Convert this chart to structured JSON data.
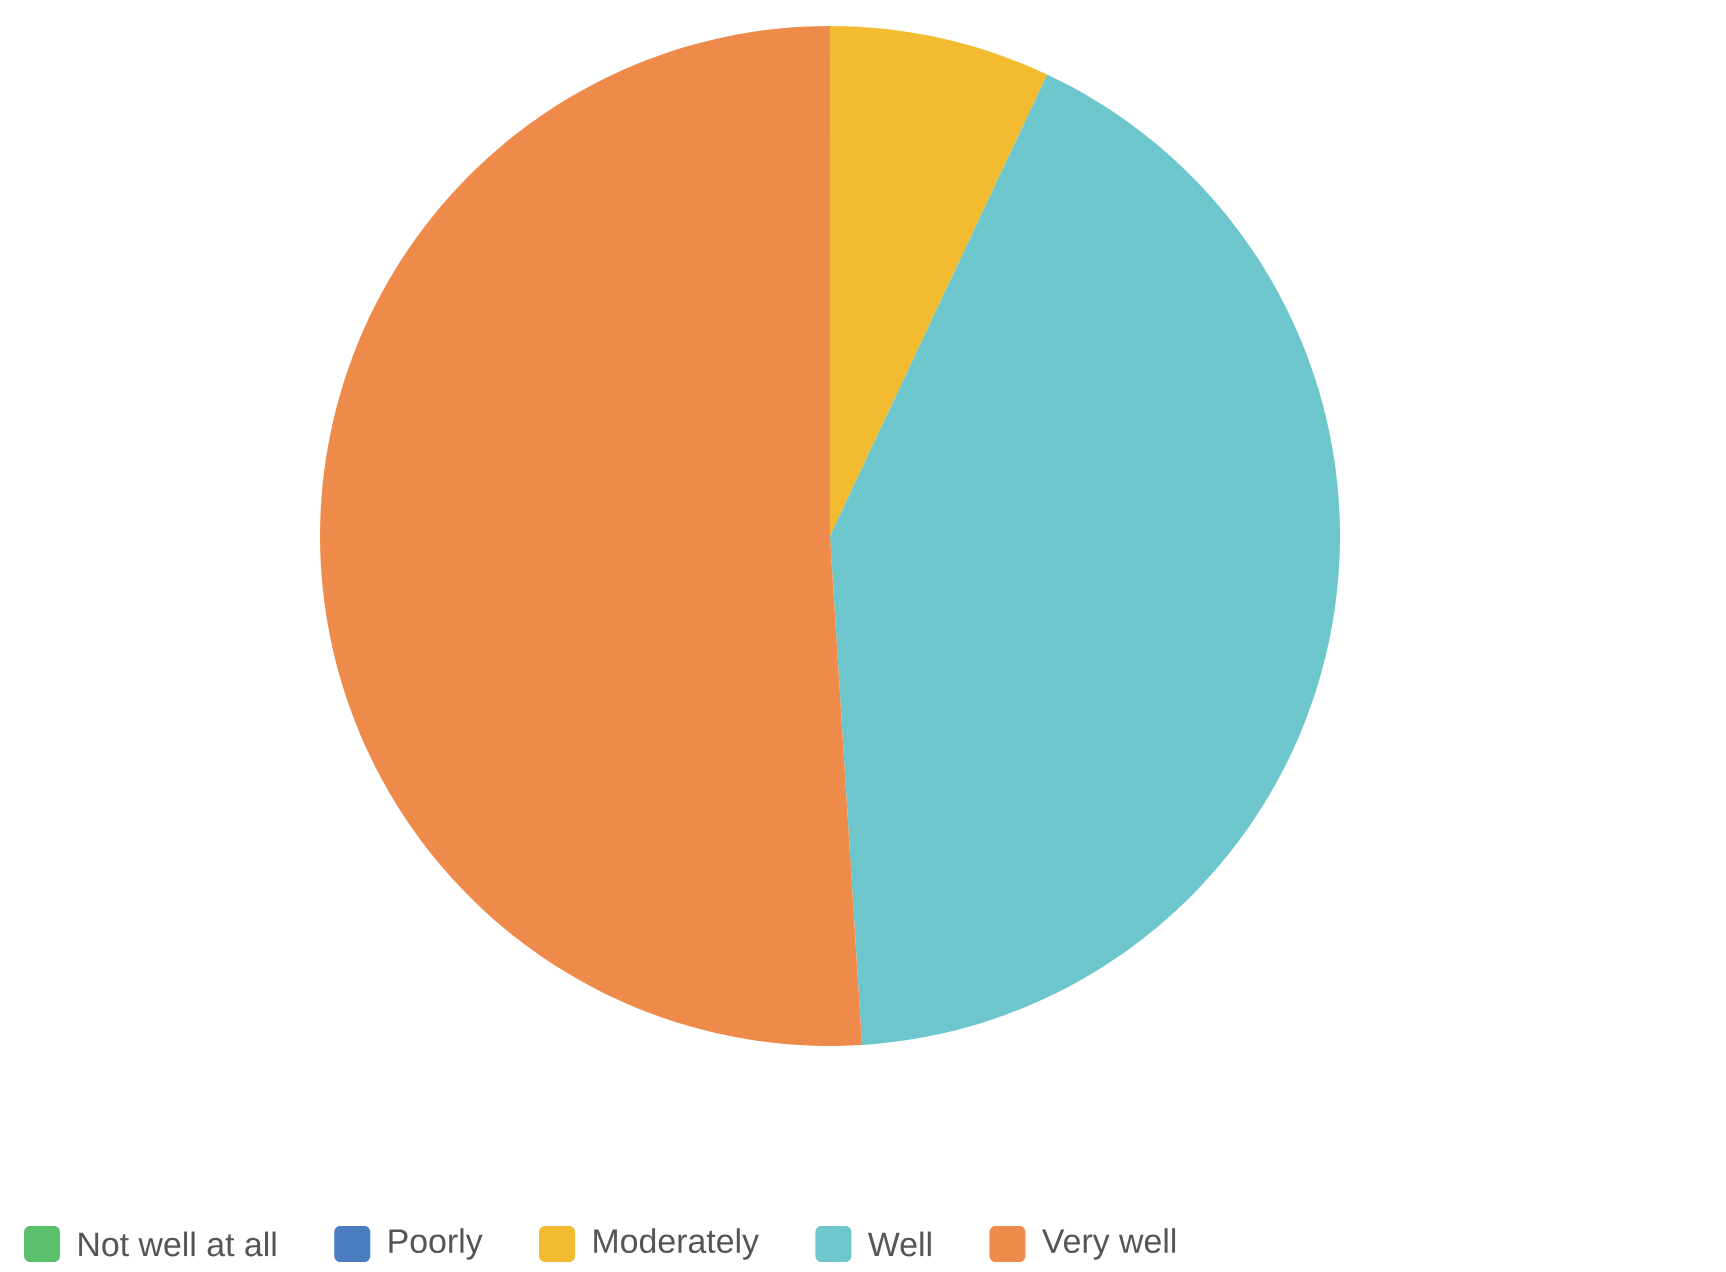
{
  "chart_data": {
    "type": "pie",
    "categories": [
      "Not well at all",
      "Poorly",
      "Moderately",
      "Well",
      "Very well"
    ],
    "values": [
      0,
      0,
      7,
      42,
      51
    ],
    "colors": [
      "#5cbf6e",
      "#4a7dbf",
      "#f3bb2f",
      "#6cc6cc",
      "#ee8b4b"
    ],
    "legend": "bottom"
  }
}
